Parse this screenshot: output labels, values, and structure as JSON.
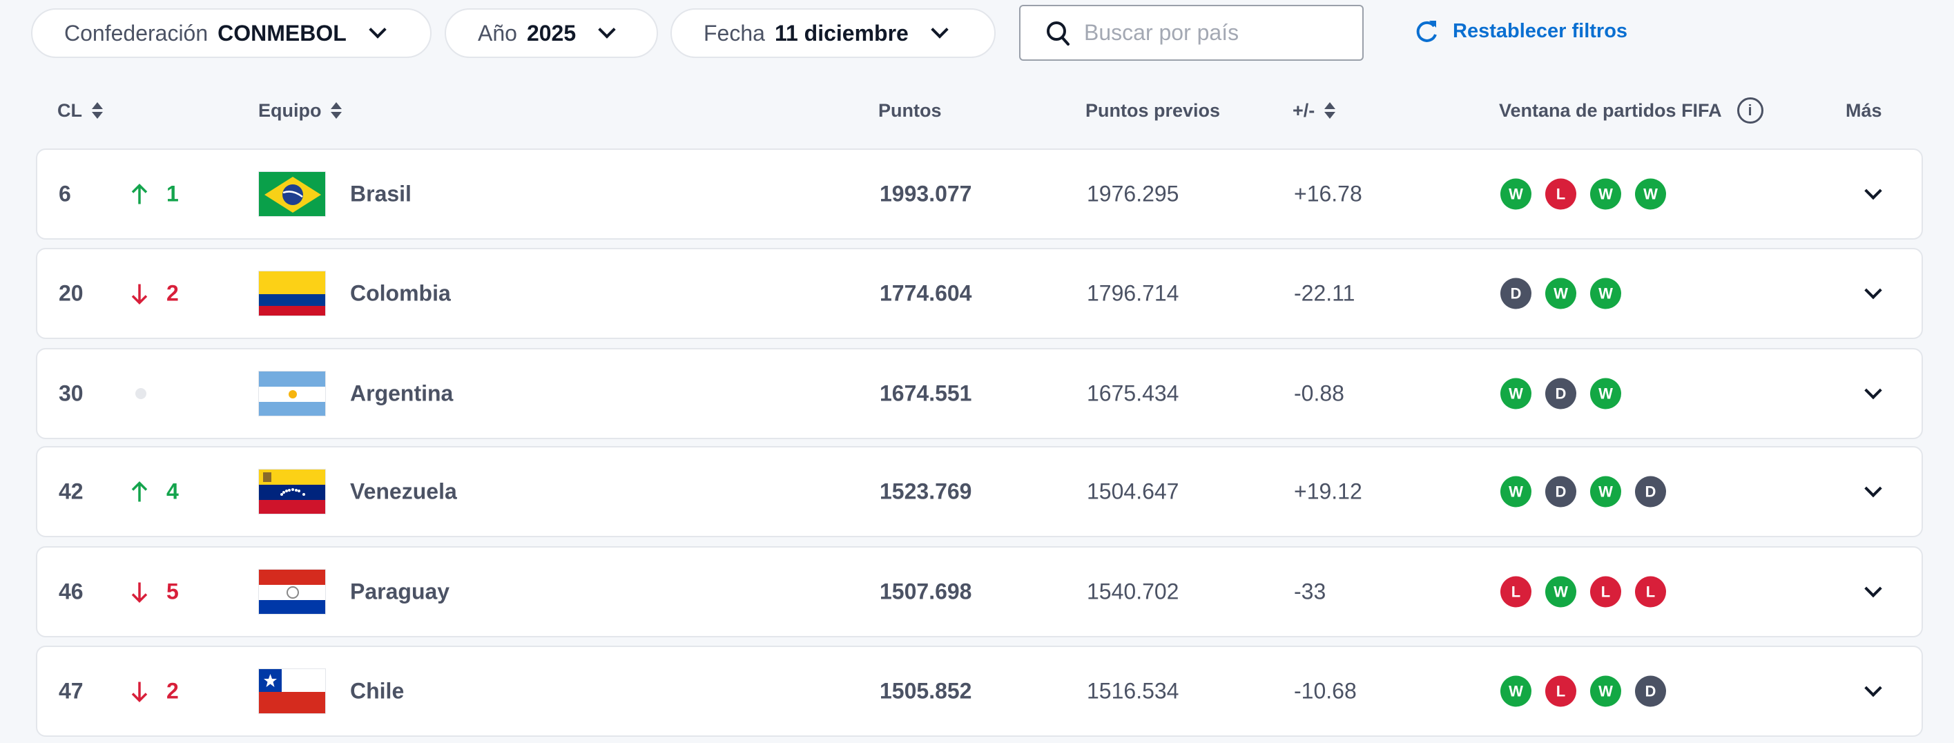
{
  "filters": {
    "confederation": {
      "label": "Confederación",
      "value": "CONMEBOL"
    },
    "year": {
      "label": "Año",
      "value": "2025"
    },
    "date": {
      "label": "Fecha",
      "value": "11 diciembre"
    },
    "search_placeholder": "Buscar por país",
    "reset_label": "Restablecer filtros"
  },
  "columns": {
    "rank": "CL",
    "team": "Equipo",
    "points": "Puntos",
    "previous": "Puntos previos",
    "diff": "+/-",
    "window": "Ventana de partidos FIFA",
    "more": "Más"
  },
  "colors": {
    "W": "#13a844",
    "L": "#d81f3a",
    "D": "#4b5264",
    "up": "#14a44d",
    "down": "#d81f3a",
    "accent": "#0a6fd1"
  },
  "rows": [
    {
      "rank": "6",
      "direction": "up",
      "change": "1",
      "team": "Brasil",
      "flag": "brazil",
      "points": "1993.077",
      "previous": "1976.295",
      "diff": "+16.78",
      "results": [
        "W",
        "L",
        "W",
        "W"
      ]
    },
    {
      "rank": "20",
      "direction": "down",
      "change": "2",
      "team": "Colombia",
      "flag": "colombia",
      "points": "1774.604",
      "previous": "1796.714",
      "diff": "-22.11",
      "results": [
        "D",
        "W",
        "W"
      ]
    },
    {
      "rank": "30",
      "direction": "same",
      "change": "",
      "team": "Argentina",
      "flag": "argentina",
      "points": "1674.551",
      "previous": "1675.434",
      "diff": "-0.88",
      "results": [
        "W",
        "D",
        "W"
      ]
    },
    {
      "rank": "42",
      "direction": "up",
      "change": "4",
      "team": "Venezuela",
      "flag": "venezuela",
      "points": "1523.769",
      "previous": "1504.647",
      "diff": "+19.12",
      "results": [
        "W",
        "D",
        "W",
        "D"
      ]
    },
    {
      "rank": "46",
      "direction": "down",
      "change": "5",
      "team": "Paraguay",
      "flag": "paraguay",
      "points": "1507.698",
      "previous": "1540.702",
      "diff": "-33",
      "results": [
        "L",
        "W",
        "L",
        "L"
      ]
    },
    {
      "rank": "47",
      "direction": "down",
      "change": "2",
      "team": "Chile",
      "flag": "chile",
      "points": "1505.852",
      "previous": "1516.534",
      "diff": "-10.68",
      "results": [
        "W",
        "L",
        "W",
        "D"
      ]
    }
  ]
}
